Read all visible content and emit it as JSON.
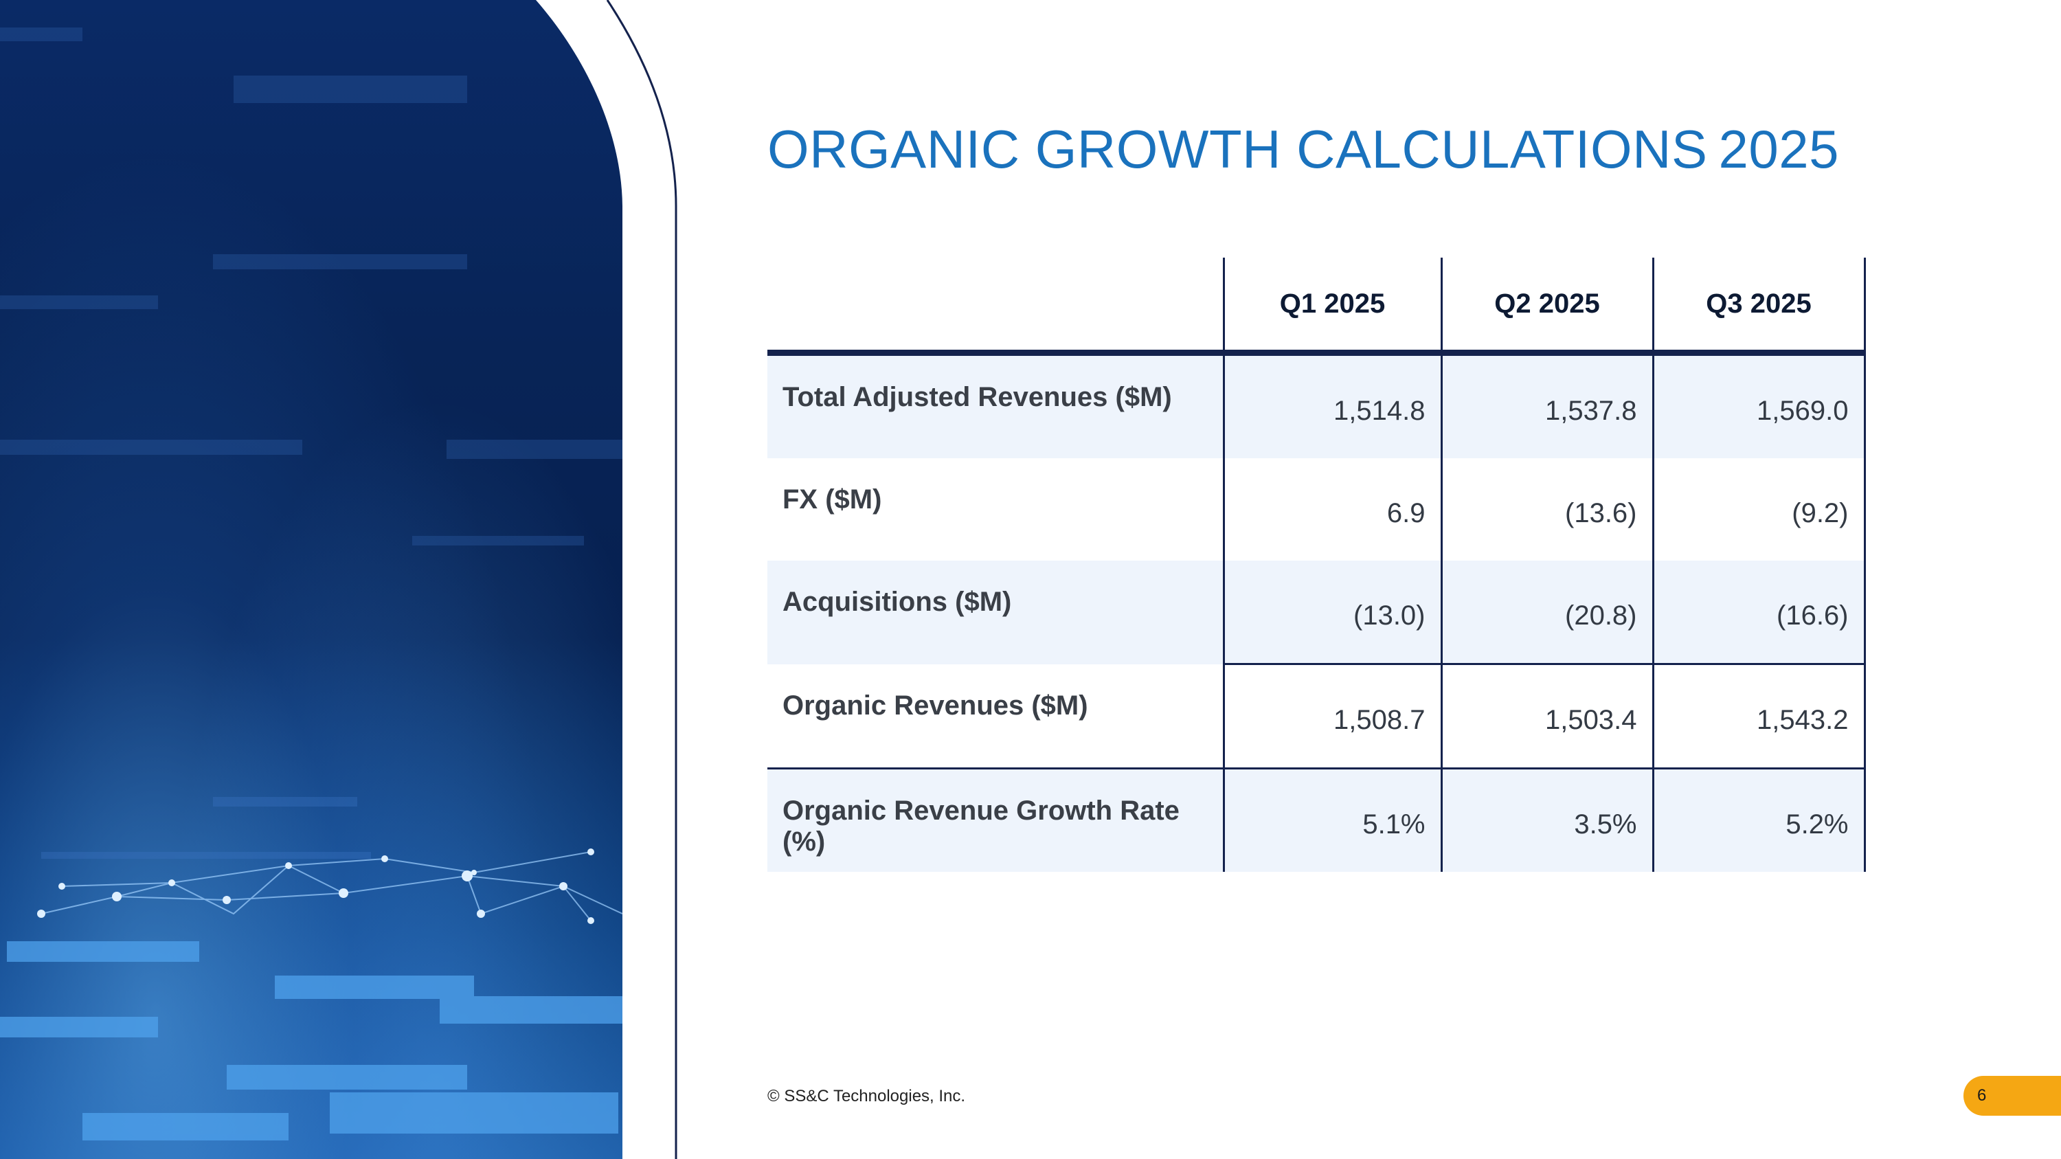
{
  "slide": {
    "title_text": "ORGANIC GROWTH CALCULATIONS",
    "title_year": "2025",
    "copyright": "© SS&C Technologies, Inc.",
    "page_number": "6"
  },
  "table": {
    "headers": [
      "",
      "Q1 2025",
      "Q2 2025",
      "Q3 2025"
    ],
    "rows": [
      {
        "label": "Total Adjusted Revenues ($M)",
        "values": [
          "1,514.8",
          "1,537.8",
          "1,569.0"
        ]
      },
      {
        "label": "FX ($M)",
        "values": [
          "6.9",
          "(13.6)",
          "(9.2)"
        ]
      },
      {
        "label": "Acquisitions ($M)",
        "values": [
          "(13.0)",
          "(20.8)",
          "(16.6)"
        ]
      },
      {
        "label": "Organic Revenues ($M)",
        "values": [
          "1,508.7",
          "1,503.4",
          "1,543.2"
        ]
      },
      {
        "label": "Organic Revenue Growth Rate (%)",
        "values": [
          "5.1%",
          "3.5%",
          "5.2%"
        ]
      }
    ]
  },
  "colors": {
    "title": "#1a72bd",
    "table_rule": "#14224d",
    "row_shade": "#eef4fc",
    "badge": "#f5a713"
  }
}
